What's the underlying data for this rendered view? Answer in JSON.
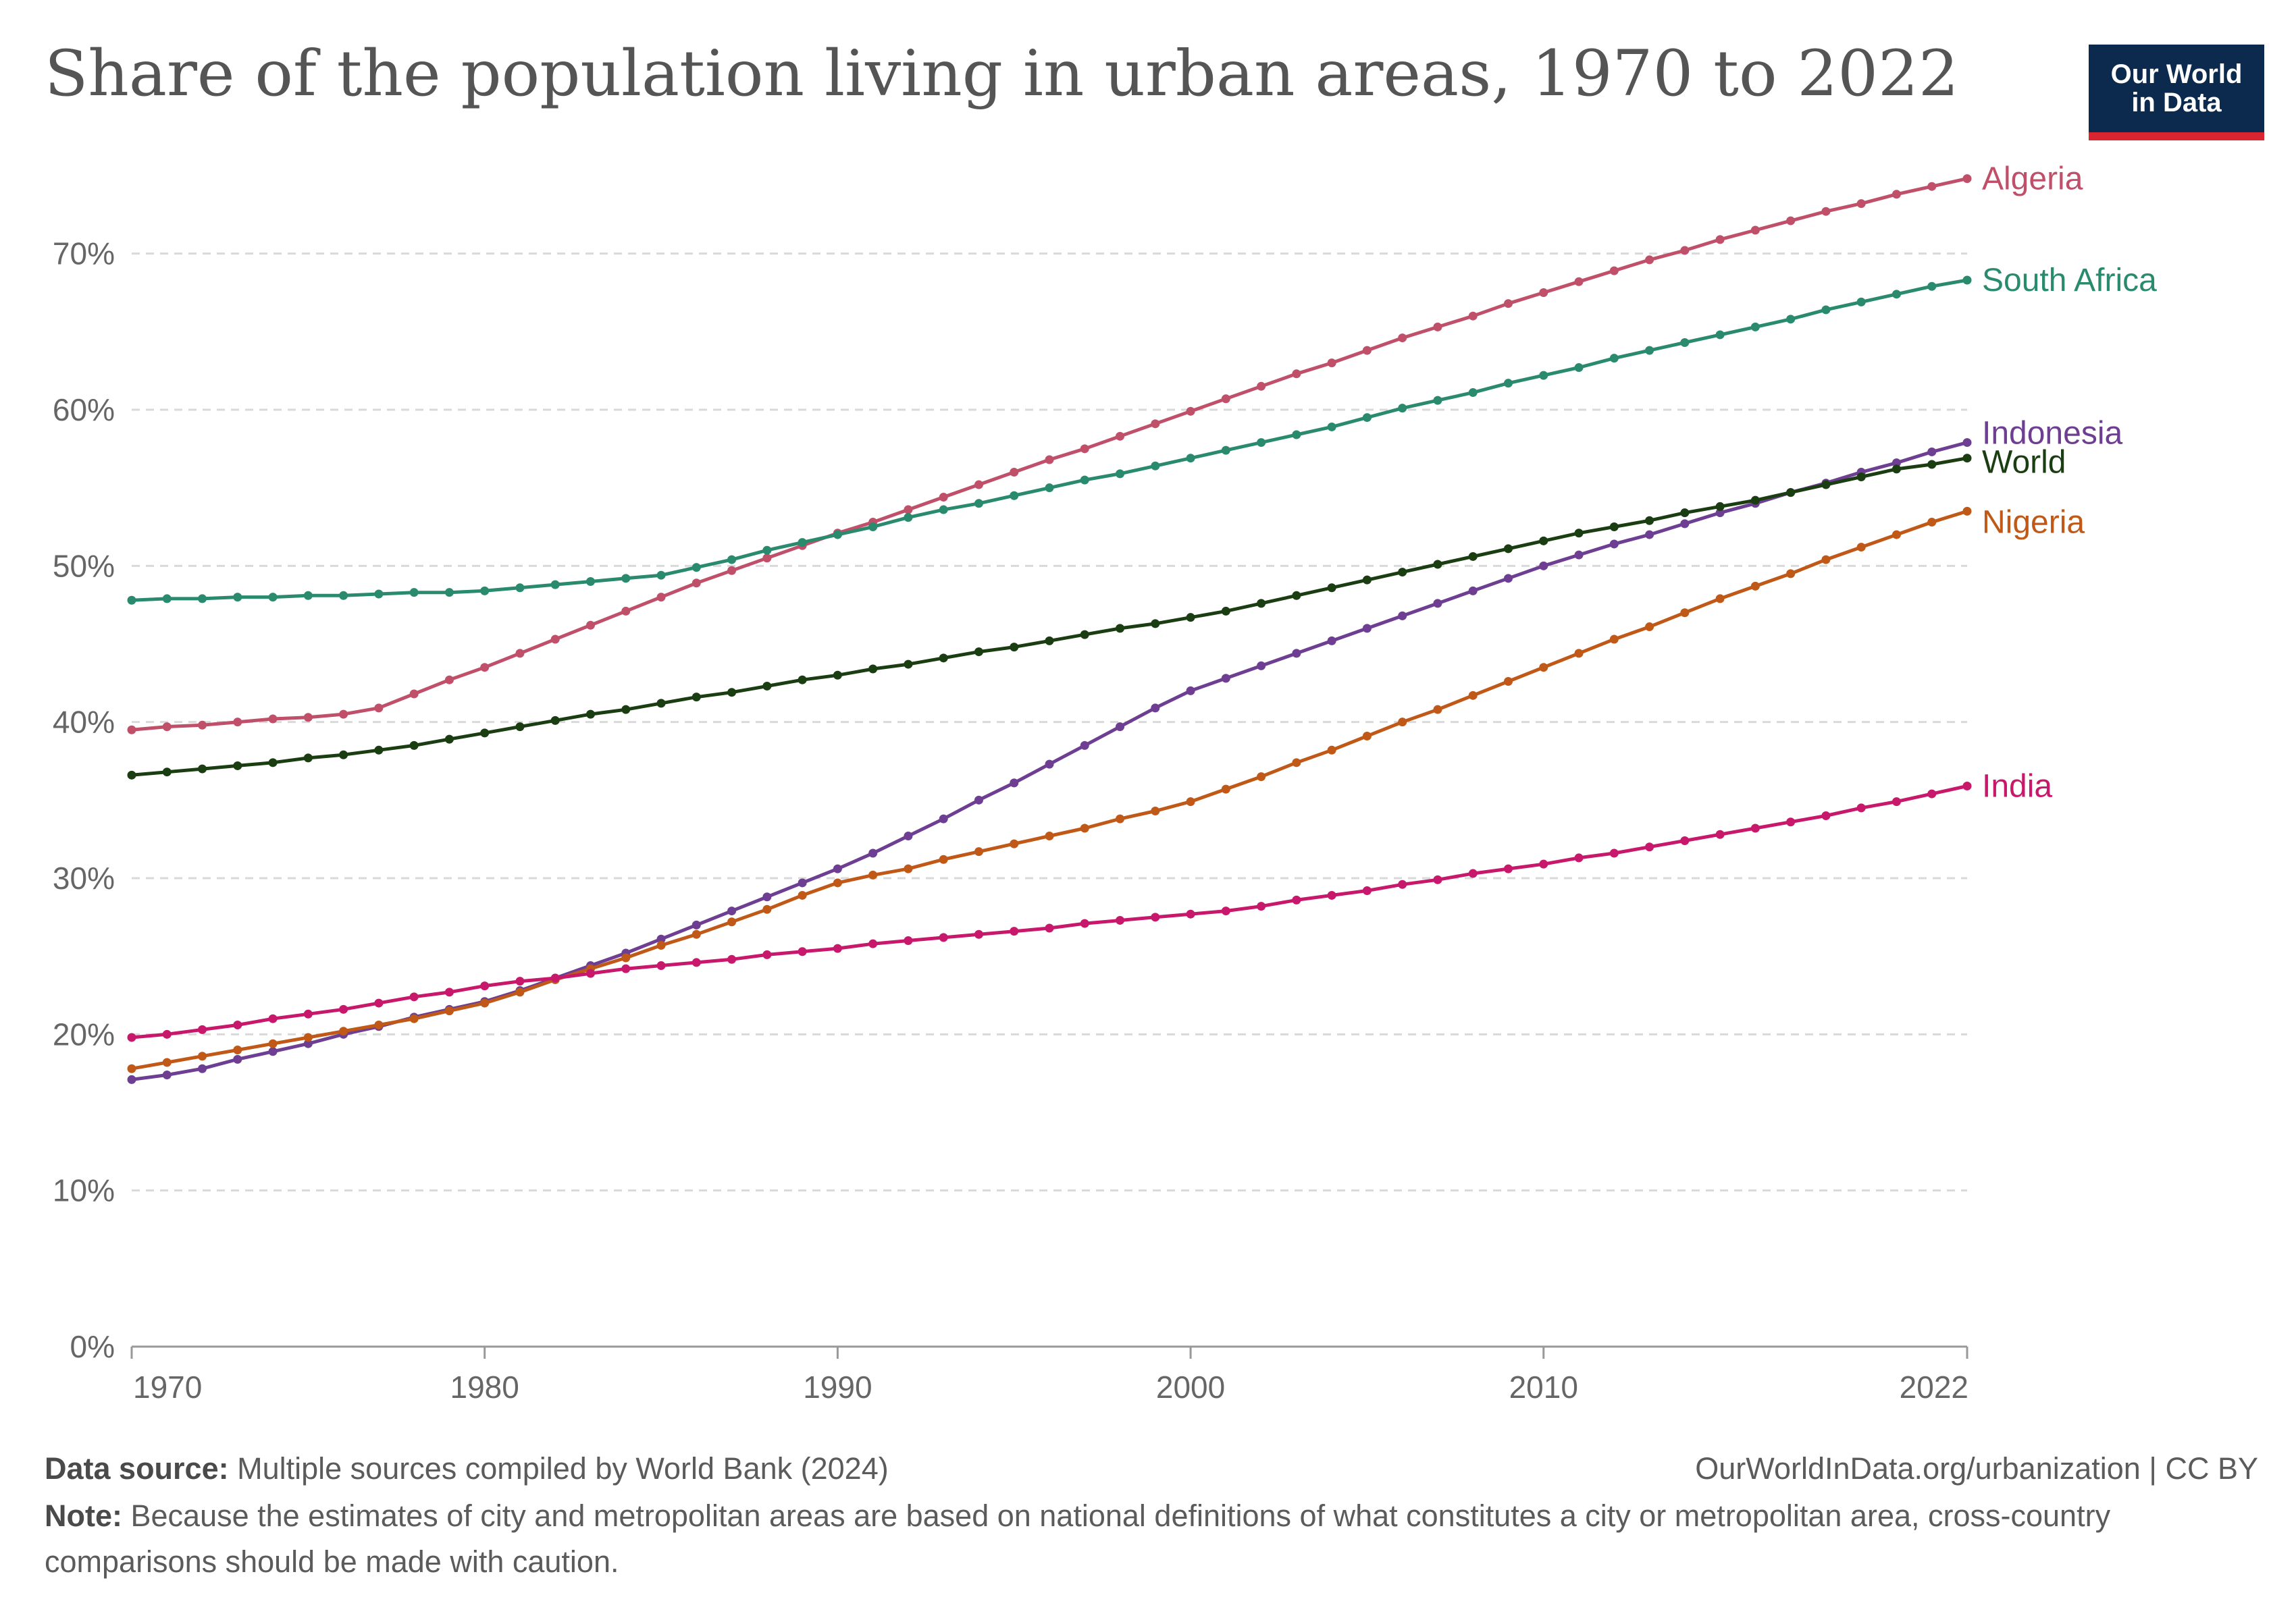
{
  "title": "Share of the population living in urban areas, 1970 to 2022",
  "logo": {
    "line1": "Our World",
    "line2": "in Data"
  },
  "footer": {
    "source_label": "Data source:",
    "source_text": "Multiple sources compiled by World Bank (2024)",
    "url": "OurWorldInData.org/urbanization | CC BY",
    "note_label": "Note:",
    "note_text": "Because the estimates of city and metropolitan areas are based on national definitions of what constitutes a city or metropolitan area, cross-country comparisons should be made with caution."
  },
  "colors": {
    "Algeria": "#c0506a",
    "South Africa": "#2a8a6e",
    "Indonesia": "#6d3e91",
    "World": "#1b3d12",
    "Nigeria": "#c05917",
    "India": "#c8186c"
  },
  "chart_data": {
    "type": "line",
    "title": "Share of the population living in urban areas, 1970 to 2022",
    "xlabel": "",
    "ylabel": "",
    "xlim": [
      1970,
      2022
    ],
    "ylim": [
      0,
      70
    ],
    "y_ticks": [
      0,
      10,
      20,
      30,
      40,
      50,
      60,
      70
    ],
    "y_tick_labels": [
      "0%",
      "10%",
      "20%",
      "30%",
      "40%",
      "50%",
      "60%",
      "70%"
    ],
    "x_ticks": [
      1970,
      1980,
      1990,
      2000,
      2010,
      2022
    ],
    "x_tick_labels": [
      "1970",
      "1980",
      "1990",
      "2000",
      "2010",
      "2022"
    ],
    "grid": "horizontal dashed",
    "legend": "labels at line ends (right)",
    "x": [
      1970,
      1971,
      1972,
      1973,
      1974,
      1975,
      1976,
      1977,
      1978,
      1979,
      1980,
      1981,
      1982,
      1983,
      1984,
      1985,
      1986,
      1987,
      1988,
      1989,
      1990,
      1991,
      1992,
      1993,
      1994,
      1995,
      1996,
      1997,
      1998,
      1999,
      2000,
      2001,
      2002,
      2003,
      2004,
      2005,
      2006,
      2007,
      2008,
      2009,
      2010,
      2011,
      2012,
      2013,
      2014,
      2015,
      2016,
      2017,
      2018,
      2019,
      2020,
      2021,
      2022
    ],
    "series": [
      {
        "name": "Algeria",
        "values": [
          39.5,
          39.7,
          39.8,
          40.0,
          40.2,
          40.3,
          40.5,
          40.9,
          41.8,
          42.7,
          43.5,
          44.4,
          45.3,
          46.2,
          47.1,
          48.0,
          48.9,
          49.7,
          50.5,
          51.3,
          52.1,
          52.8,
          53.6,
          54.4,
          55.2,
          56.0,
          56.8,
          57.5,
          58.3,
          59.1,
          59.9,
          60.7,
          61.5,
          62.3,
          63.0,
          63.8,
          64.6,
          65.3,
          66.0,
          66.8,
          67.5,
          68.2,
          68.9,
          69.6,
          70.2,
          70.9,
          71.5,
          72.1,
          72.7,
          73.2,
          73.8,
          74.3,
          74.8
        ]
      },
      {
        "name": "South Africa",
        "values": [
          47.8,
          47.9,
          47.9,
          48.0,
          48.0,
          48.1,
          48.1,
          48.2,
          48.3,
          48.3,
          48.4,
          48.6,
          48.8,
          49.0,
          49.2,
          49.4,
          49.9,
          50.4,
          51.0,
          51.5,
          52.0,
          52.5,
          53.1,
          53.6,
          54.0,
          54.5,
          55.0,
          55.5,
          55.9,
          56.4,
          56.9,
          57.4,
          57.9,
          58.4,
          58.9,
          59.5,
          60.1,
          60.6,
          61.1,
          61.7,
          62.2,
          62.7,
          63.3,
          63.8,
          64.3,
          64.8,
          65.3,
          65.8,
          66.4,
          66.9,
          67.4,
          67.9,
          68.3
        ]
      },
      {
        "name": "Indonesia",
        "values": [
          17.1,
          17.4,
          17.8,
          18.4,
          18.9,
          19.4,
          20.0,
          20.5,
          21.1,
          21.6,
          22.1,
          22.8,
          23.6,
          24.4,
          25.2,
          26.1,
          27.0,
          27.9,
          28.8,
          29.7,
          30.6,
          31.6,
          32.7,
          33.8,
          35.0,
          36.1,
          37.3,
          38.5,
          39.7,
          40.9,
          42.0,
          42.8,
          43.6,
          44.4,
          45.2,
          46.0,
          46.8,
          47.6,
          48.4,
          49.2,
          50.0,
          50.7,
          51.4,
          52.0,
          52.7,
          53.4,
          54.0,
          54.7,
          55.3,
          56.0,
          56.6,
          57.3,
          57.9
        ]
      },
      {
        "name": "World",
        "values": [
          36.6,
          36.8,
          37.0,
          37.2,
          37.4,
          37.7,
          37.9,
          38.2,
          38.5,
          38.9,
          39.3,
          39.7,
          40.1,
          40.5,
          40.8,
          41.2,
          41.6,
          41.9,
          42.3,
          42.7,
          43.0,
          43.4,
          43.7,
          44.1,
          44.5,
          44.8,
          45.2,
          45.6,
          46.0,
          46.3,
          46.7,
          47.1,
          47.6,
          48.1,
          48.6,
          49.1,
          49.6,
          50.1,
          50.6,
          51.1,
          51.6,
          52.1,
          52.5,
          52.9,
          53.4,
          53.8,
          54.2,
          54.7,
          55.2,
          55.7,
          56.2,
          56.5,
          56.9
        ]
      },
      {
        "name": "Nigeria",
        "values": [
          17.8,
          18.2,
          18.6,
          19.0,
          19.4,
          19.8,
          20.2,
          20.6,
          21.0,
          21.5,
          22.0,
          22.7,
          23.5,
          24.2,
          24.9,
          25.7,
          26.4,
          27.2,
          28.0,
          28.9,
          29.7,
          30.2,
          30.6,
          31.2,
          31.7,
          32.2,
          32.7,
          33.2,
          33.8,
          34.3,
          34.9,
          35.7,
          36.5,
          37.4,
          38.2,
          39.1,
          40.0,
          40.8,
          41.7,
          42.6,
          43.5,
          44.4,
          45.3,
          46.1,
          47.0,
          47.9,
          48.7,
          49.5,
          50.4,
          51.2,
          52.0,
          52.8,
          53.5
        ]
      },
      {
        "name": "India",
        "values": [
          19.8,
          20.0,
          20.3,
          20.6,
          21.0,
          21.3,
          21.6,
          22.0,
          22.4,
          22.7,
          23.1,
          23.4,
          23.6,
          23.9,
          24.2,
          24.4,
          24.6,
          24.8,
          25.1,
          25.3,
          25.5,
          25.8,
          26.0,
          26.2,
          26.4,
          26.6,
          26.8,
          27.1,
          27.3,
          27.5,
          27.7,
          27.9,
          28.2,
          28.6,
          28.9,
          29.2,
          29.6,
          29.9,
          30.3,
          30.6,
          30.9,
          31.3,
          31.6,
          32.0,
          32.4,
          32.8,
          33.2,
          33.6,
          34.0,
          34.5,
          34.9,
          35.4,
          35.9
        ]
      }
    ]
  }
}
